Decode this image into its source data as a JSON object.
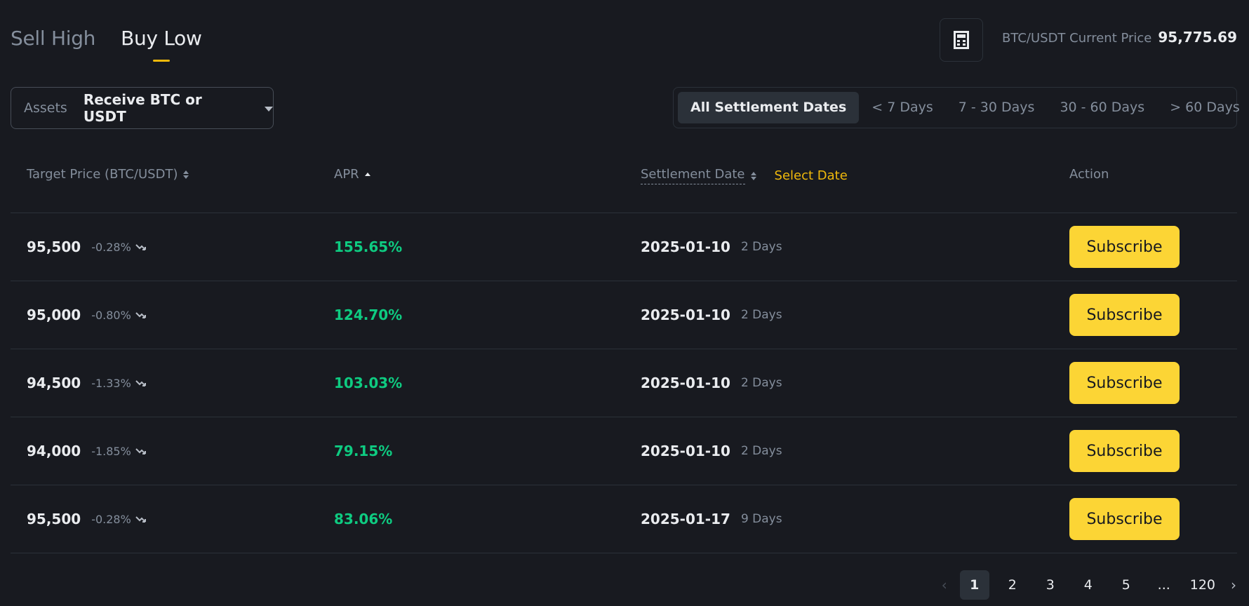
{
  "header": {
    "tabs": [
      {
        "label": "Sell High",
        "active": false
      },
      {
        "label": "Buy Low",
        "active": true
      }
    ],
    "calculator_icon": "calculator-icon",
    "price_label": "BTC/USDT Current Price",
    "price_value": "95,775.69"
  },
  "assets": {
    "label": "Assets",
    "value": "Receive BTC or USDT"
  },
  "settlement_filter": [
    {
      "label": "All Settlement Dates",
      "active": true
    },
    {
      "label": "< 7 Days",
      "active": false
    },
    {
      "label": "7 - 30 Days",
      "active": false
    },
    {
      "label": "30 - 60 Days",
      "active": false
    },
    {
      "label": "> 60 Days",
      "active": false
    }
  ],
  "table": {
    "headers": {
      "target_price": "Target Price (BTC/USDT)",
      "apr": "APR",
      "settlement_date": "Settlement Date",
      "select_date": "Select Date",
      "action": "Action"
    },
    "rows": [
      {
        "price": "95,500",
        "pct": "-0.28%",
        "apr": "155.65%",
        "date": "2025-01-10",
        "days": "2 Days",
        "action": "Subscribe"
      },
      {
        "price": "95,000",
        "pct": "-0.80%",
        "apr": "124.70%",
        "date": "2025-01-10",
        "days": "2 Days",
        "action": "Subscribe"
      },
      {
        "price": "94,500",
        "pct": "-1.33%",
        "apr": "103.03%",
        "date": "2025-01-10",
        "days": "2 Days",
        "action": "Subscribe"
      },
      {
        "price": "94,000",
        "pct": "-1.85%",
        "apr": "79.15%",
        "date": "2025-01-10",
        "days": "2 Days",
        "action": "Subscribe"
      },
      {
        "price": "95,500",
        "pct": "-0.28%",
        "apr": "83.06%",
        "date": "2025-01-17",
        "days": "9 Days",
        "action": "Subscribe"
      }
    ]
  },
  "pagination": {
    "pages": [
      "1",
      "2",
      "3",
      "4",
      "5",
      "...",
      "120"
    ],
    "current": "1"
  },
  "colors": {
    "background": "#181a20",
    "accent": "#f0b90b",
    "button": "#fcd535",
    "positive": "#0ecb81",
    "muted": "#848e9c"
  }
}
